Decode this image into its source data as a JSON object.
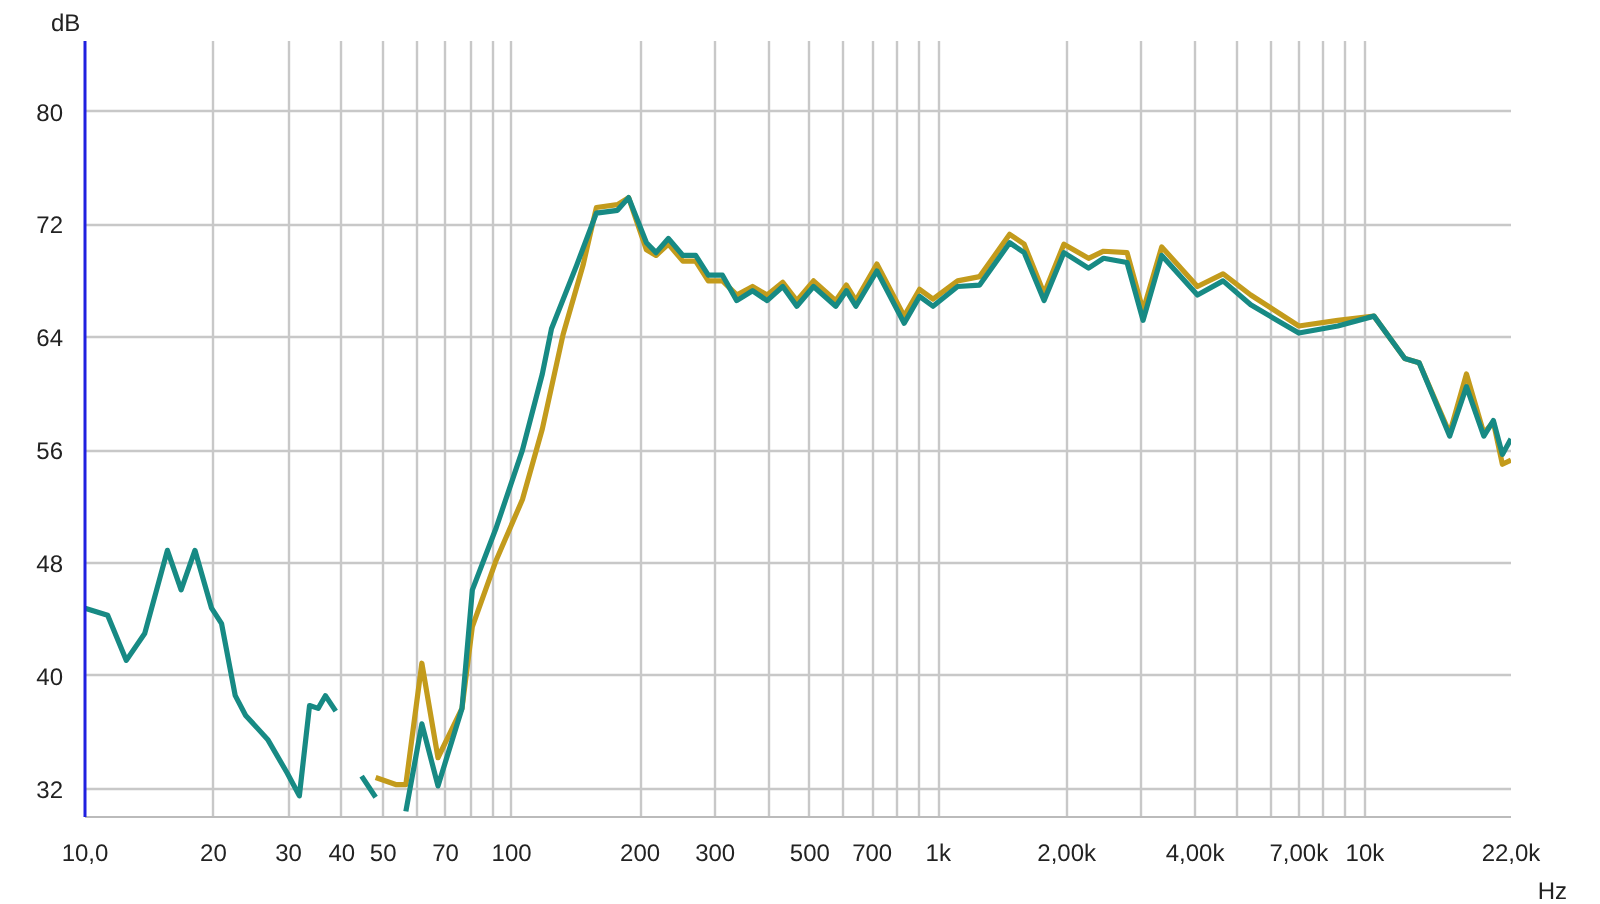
{
  "chart_data": {
    "type": "line",
    "xlabel": "Hz",
    "ylabel": "dB",
    "log": "x",
    "grid": true,
    "marker": "none",
    "line_style": "solid",
    "xlim": [
      10,
      22000
    ],
    "ylim": [
      30,
      85
    ],
    "xticks": [
      {
        "value": 10,
        "label": "10,0"
      },
      20,
      30,
      40,
      50,
      {
        "value": 60,
        "label": null
      },
      70,
      {
        "value": 80,
        "label": null
      },
      {
        "value": 90,
        "label": null
      },
      100,
      200,
      300,
      {
        "value": 400,
        "label": null
      },
      500,
      {
        "value": 600,
        "label": null
      },
      700,
      {
        "value": 800,
        "label": null
      },
      {
        "value": 900,
        "label": null
      },
      {
        "value": 1000,
        "label": "1k"
      },
      {
        "value": 2000,
        "label": "2,00k"
      },
      {
        "value": 3000,
        "label": null
      },
      {
        "value": 4000,
        "label": "4,00k"
      },
      {
        "value": 5000,
        "label": null
      },
      {
        "value": 6000,
        "label": null
      },
      {
        "value": 7000,
        "label": "7,00k"
      },
      {
        "value": 8000,
        "label": null
      },
      {
        "value": 9000,
        "label": null
      },
      {
        "value": 10000,
        "label": "10k"
      },
      {
        "value": 22000,
        "label": "22,0k"
      }
    ],
    "yticks": [
      32,
      40,
      48,
      56,
      64,
      72,
      80
    ],
    "series": [
      {
        "color": "#c39b1c",
        "x": [
          48,
          53.5,
          56.5,
          61.6,
          67.2,
          76.5,
          80.9,
          92,
          106,
          118,
          132,
          147,
          158,
          177,
          188,
          207,
          218,
          233,
          252,
          270,
          289,
          312,
          337,
          367,
          397,
          432,
          466,
          510,
          575,
          609,
          641,
          718,
          832,
          904,
          972,
          1110,
          1250,
          1470,
          1590,
          1770,
          1970,
          2250,
          2440,
          2770,
          3020,
          3340,
          4050,
          4650,
          5400,
          7000,
          8640,
          10500,
          12400,
          13400,
          15800,
          17300,
          19000,
          20000,
          21000,
          22000
        ],
        "values": [
          32.8,
          32.3,
          32.3,
          40.9,
          34.2,
          37.7,
          43.5,
          48.2,
          52.5,
          57.5,
          64.2,
          69.1,
          73.2,
          73.4,
          73.9,
          70.2,
          69.8,
          70.6,
          69.4,
          69.4,
          68.0,
          68.0,
          67.0,
          67.6,
          67.0,
          67.9,
          66.6,
          68.0,
          66.6,
          67.7,
          66.6,
          69.2,
          65.5,
          67.4,
          66.7,
          68.0,
          68.3,
          71.3,
          70.6,
          67.1,
          70.6,
          69.6,
          70.1,
          70.0,
          65.9,
          70.4,
          67.6,
          68.5,
          67.0,
          64.8,
          65.2,
          65.5,
          62.5,
          62.2,
          57.2,
          61.4,
          57.2,
          58.0,
          55.0,
          55.3
        ]
      },
      {
        "color": "#178a84",
        "x": [
          10,
          11.3,
          12.5,
          13.8,
          15.6,
          16.8,
          18.1,
          19.8,
          20.9,
          22.5,
          23.8,
          26.8,
          29.8,
          31.8,
          33.6,
          35.2,
          36.6,
          38.7,
          40.8,
          41.8,
          42.8,
          44.5,
          48,
          50,
          51.5,
          53.5,
          56.5,
          61.6,
          67.2,
          76.5,
          80.9,
          92,
          106,
          118,
          124,
          142,
          158,
          177,
          188,
          207,
          218,
          233,
          252,
          270,
          289,
          312,
          337,
          367,
          397,
          432,
          466,
          510,
          575,
          609,
          641,
          718,
          832,
          904,
          972,
          1110,
          1250,
          1470,
          1590,
          1770,
          1970,
          2250,
          2440,
          2770,
          3020,
          3340,
          4050,
          4650,
          5400,
          7000,
          8640,
          10500,
          12400,
          13400,
          15800,
          17300,
          19000,
          20000,
          21000,
          22000
        ],
        "values": [
          44.8,
          44.3,
          41.1,
          43.0,
          48.9,
          46.1,
          48.9,
          44.8,
          43.7,
          38.6,
          37.2,
          35.5,
          33.1,
          31.5,
          37.9,
          37.7,
          38.6,
          37.5,
          null,
          null,
          null,
          32.9,
          31.4,
          null,
          null,
          null,
          30.4,
          36.6,
          32.2,
          37.7,
          46.1,
          50.5,
          56.0,
          61.4,
          64.6,
          69.1,
          72.8,
          73.0,
          73.9,
          70.7,
          70.0,
          71.0,
          69.8,
          69.8,
          68.4,
          68.4,
          66.6,
          67.3,
          66.6,
          67.6,
          66.2,
          67.6,
          66.2,
          67.3,
          66.2,
          68.7,
          65.0,
          66.9,
          66.2,
          67.6,
          67.7,
          70.7,
          70.0,
          66.6,
          70.0,
          68.9,
          69.6,
          69.3,
          65.2,
          69.8,
          67.0,
          68.0,
          66.3,
          64.3,
          64.8,
          65.5,
          62.5,
          62.2,
          57.0,
          60.5,
          57.0,
          58.1,
          55.7,
          56.8
        ]
      }
    ]
  }
}
